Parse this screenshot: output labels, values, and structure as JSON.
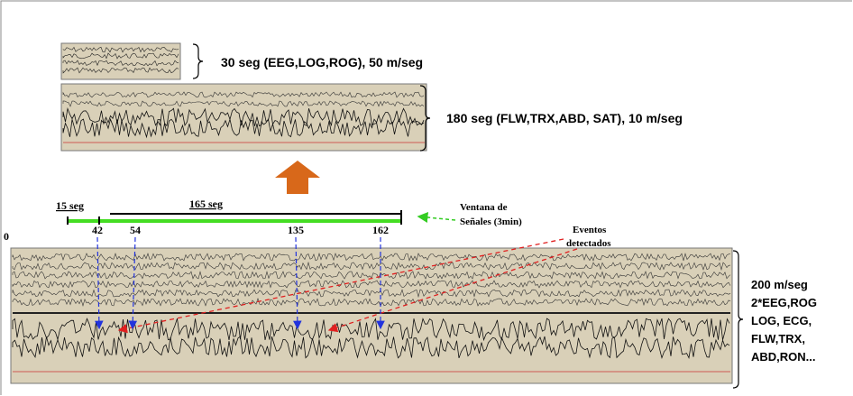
{
  "top_strip": {
    "label": "30 seg (EEG,LOG,ROG), 50 m/seg"
  },
  "middle_strip": {
    "label": "180 seg (FLW,TRX,ABD, SAT), 10 m/seg"
  },
  "timeline": {
    "start_label": "15 seg",
    "main_label": "165 seg",
    "origin": "0",
    "events": [
      42,
      54,
      135,
      162
    ],
    "window_label": [
      "Ventana de",
      "Señales (3min)"
    ],
    "events_label": [
      "Eventos",
      "detectados"
    ]
  },
  "bottom_strip": {
    "label": [
      "200 m/seg",
      "2*EEG,ROG",
      "LOG, ECG,",
      "FLW,TRX,",
      "ABD,RON..."
    ]
  }
}
